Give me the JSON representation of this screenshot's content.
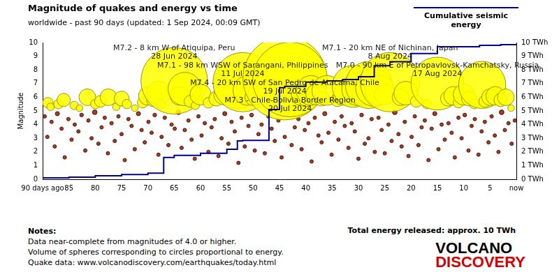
{
  "chart_data": {
    "type": "bubble",
    "title": "Magnitude of quakes and energy vs time",
    "subtitle": "worldwide - past 90 days (updated: 1 Sep 2024, 00:09 GMT)",
    "ylabel": "Magnitude",
    "xlim": [
      90,
      0
    ],
    "xticks": [
      {
        "value": 90,
        "label": "90 days ago"
      },
      85,
      80,
      75,
      70,
      65,
      60,
      55,
      50,
      45,
      40,
      35,
      30,
      25,
      20,
      15,
      10,
      5,
      {
        "value": 0,
        "label": "now"
      }
    ],
    "ylim": [
      0,
      10
    ],
    "yticks": [
      0,
      1,
      2,
      3,
      4,
      5,
      6,
      7,
      8,
      9,
      10
    ],
    "y2lim": [
      0,
      10
    ],
    "y2ticks": [
      {
        "value": 0,
        "label": "0 TWh"
      },
      {
        "value": 1,
        "label": "1 TWh"
      },
      {
        "value": 2,
        "label": "2 TWh"
      },
      {
        "value": 3,
        "label": "3 TWh"
      },
      {
        "value": 4,
        "label": "4 TWh"
      },
      {
        "value": 5,
        "label": "5 TWh"
      },
      {
        "value": 6,
        "label": "6 TWh"
      },
      {
        "value": 7,
        "label": "7 TWh"
      },
      {
        "value": 8,
        "label": "8 TWh"
      },
      {
        "value": 9,
        "label": "9 TWh"
      },
      {
        "value": 10,
        "label": "10 TWh"
      }
    ],
    "grid": false,
    "series": [
      {
        "name": "Cumulative seismic energy",
        "type": "line",
        "line_style": "step",
        "axis": "y2",
        "color": "#00008b",
        "x": [
          90,
          85,
          80,
          75,
          70,
          67,
          65,
          60,
          55,
          53,
          52,
          47,
          45,
          44,
          40,
          36,
          33,
          30,
          27,
          24,
          20,
          15,
          7,
          3,
          0
        ],
        "values": [
          0.02,
          0.1,
          0.15,
          0.25,
          0.35,
          0.45,
          1.6,
          1.75,
          1.9,
          2.2,
          2.8,
          2.85,
          5.1,
          6.7,
          6.8,
          7.1,
          7.2,
          7.3,
          7.5,
          8.3,
          8.6,
          9.2,
          9.7,
          9.8,
          9.85
        ]
      },
      {
        "type": "bubble",
        "color": "#ffff00",
        "x": [
          89,
          88.5,
          87,
          86,
          84,
          83,
          81.5,
          80,
          79,
          77.5,
          76,
          75,
          74,
          72.5,
          71,
          70,
          69,
          68,
          67.5,
          65,
          64,
          63,
          62,
          61,
          60,
          58.5,
          57,
          55.5,
          54,
          53,
          52,
          51,
          50,
          49,
          48,
          47,
          46,
          44,
          43,
          41,
          40,
          39,
          38,
          37,
          36,
          34,
          33,
          32,
          31,
          30,
          29,
          28,
          27,
          26,
          25,
          24,
          22,
          21,
          19,
          17,
          15,
          13,
          12,
          11,
          10,
          9,
          8,
          6.5,
          6,
          5,
          4,
          3,
          2,
          1
        ],
        "values": [
          5.6,
          5.3,
          5.5,
          5.8,
          5.4,
          5.2,
          6.0,
          5.5,
          5.7,
          6.0,
          5.3,
          5.9,
          5.5,
          5.2,
          5.6,
          6.1,
          5.8,
          6.3,
          5.5,
          7.2,
          6.1,
          6.6,
          5.7,
          5.4,
          6.2,
          5.6,
          5.9,
          6.2,
          6.6,
          6.9,
          7.1,
          6.5,
          6.0,
          6.2,
          5.8,
          6.0,
          6.4,
          7.4,
          7.3,
          6.1,
          5.8,
          6.5,
          6.2,
          5.9,
          6.5,
          5.8,
          6.1,
          6.4,
          6.8,
          6.6,
          6.3,
          6.9,
          6.7,
          6.5,
          6.2,
          7.1,
          6.0,
          6.3,
          5.7,
          5.5,
          7.0,
          5.9,
          6.1,
          5.6,
          6.2,
          5.9,
          5.5,
          6.9,
          5.7,
          6.0,
          6.1,
          5.8,
          6.0,
          5.2
        ]
      },
      {
        "type": "bubble",
        "color": "#8b1e00",
        "x": [
          89.6,
          89.1,
          88.3,
          87.7,
          87.2,
          86.4,
          85.8,
          85.1,
          84.5,
          83.9,
          83.2,
          82.6,
          81.9,
          81.3,
          80.7,
          80.1,
          79.4,
          78.8,
          78.2,
          77.6,
          76.9,
          76.3,
          75.6,
          75.0,
          74.4,
          73.7,
          73.1,
          72.5,
          71.8,
          71.2,
          70.6,
          69.9,
          69.3,
          68.7,
          68.0,
          67.4,
          66.8,
          66.1,
          65.5,
          64.9,
          64.2,
          63.6,
          63.0,
          62.3,
          61.7,
          61.1,
          60.4,
          59.8,
          59.2,
          58.5,
          57.9,
          57.3,
          56.6,
          56.0,
          55.4,
          54.7,
          54.1,
          53.5,
          52.8,
          52.2,
          51.6,
          50.9,
          50.3,
          49.7,
          49.0,
          48.4,
          47.8,
          47.1,
          46.5,
          45.9,
          45.2,
          44.6,
          44.0,
          43.3,
          42.7,
          42.1,
          41.4,
          40.8,
          40.2,
          39.5,
          38.9,
          38.3,
          37.6,
          37.0,
          36.4,
          35.7,
          35.1,
          34.5,
          33.8,
          33.2,
          32.6,
          31.9,
          31.3,
          30.7,
          30.0,
          29.4,
          28.8,
          28.1,
          27.5,
          26.9,
          26.2,
          25.6,
          25.0,
          24.3,
          23.7,
          23.1,
          22.4,
          21.8,
          21.2,
          20.5,
          19.9,
          19.3,
          18.6,
          18.0,
          17.4,
          16.7,
          16.1,
          15.5,
          14.8,
          14.2,
          13.6,
          12.9,
          12.3,
          11.7,
          11.0,
          10.4,
          9.8,
          9.1,
          8.5,
          7.9,
          7.2,
          6.6,
          6.0,
          5.3,
          4.7,
          4.1,
          3.4,
          2.8,
          2.2,
          1.5,
          0.9,
          0.3
        ],
        "values": [
          4.6,
          3.1,
          4.2,
          2.4,
          4.8,
          3.7,
          1.6,
          4.4,
          2.9,
          4.0,
          3.5,
          4.7,
          2.1,
          4.3,
          3.0,
          4.9,
          2.6,
          3.8,
          4.5,
          1.9,
          4.1,
          2.8,
          4.6,
          3.3,
          1.4,
          4.4,
          3.9,
          2.2,
          4.8,
          3.6,
          2.7,
          4.2,
          3.4,
          4.7,
          1.8,
          3.1,
          4.5,
          2.5,
          4.0,
          3.7,
          4.9,
          2.3,
          3.6,
          4.3,
          2.9,
          1.5,
          4.6,
          3.2,
          4.1,
          2.0,
          3.8,
          4.4,
          1.7,
          3.0,
          4.8,
          2.6,
          4.2,
          3.5,
          1.2,
          4.5,
          2.4,
          3.9,
          4.7,
          2.1,
          3.3,
          4.0,
          1.9,
          4.6,
          3.7,
          2.8,
          4.3,
          1.6,
          3.1,
          4.9,
          2.5,
          3.8,
          4.4,
          2.2,
          3.6,
          4.1,
          1.3,
          4.5,
          3.2,
          2.7,
          4.8,
          3.4,
          1.8,
          4.2,
          2.9,
          4.6,
          3.9,
          2.3,
          4.1,
          3.5,
          1.5,
          4.7,
          2.6,
          3.0,
          4.4,
          2.0,
          4.5,
          3.6,
          1.9,
          4.0,
          2.8,
          4.9,
          3.3,
          2.4,
          4.2,
          1.7,
          3.1,
          4.6,
          2.5,
          3.8,
          4.3,
          1.4,
          3.7,
          4.8,
          2.2,
          4.0,
          2.9,
          4.1,
          3.4,
          1.6,
          4.5,
          3.0,
          4.7,
          2.1,
          3.9,
          4.4,
          1.8,
          3.5,
          4.2,
          2.7,
          4.6,
          3.2,
          2.0,
          4.9,
          3.6,
          4.1,
          2.6,
          4.3
        ]
      }
    ],
    "annotations": [
      {
        "x": 65,
        "y": 7.2,
        "text": "M7.2 - 8 km W of Atiquipa, Peru",
        "date": "28 Jun 2024"
      },
      {
        "x": 52,
        "y": 7.1,
        "text": "M7.1 - 98 km WSW of Sarangani, Philippines",
        "date": "11 Jul 2024"
      },
      {
        "x": 44,
        "y": 7.4,
        "text": "M7.4 - 20 km SW of San Pedro de Atacama, Chile",
        "date": "19 Jul 2024"
      },
      {
        "x": 43,
        "y": 7.3,
        "text": "M7.3 - Chile-Bolivia Border Region",
        "date": "20 Jul 2024"
      },
      {
        "x": 24,
        "y": 7.1,
        "text": "M7.1 - 20 km NE of Nichinan, Japan",
        "date": "8 Aug 2024"
      },
      {
        "x": 15,
        "y": 7.0,
        "text": "M7.0 - 90 km E of Petropavlovsk-Kamchatsky, Russia",
        "date": "17 Aug 2024"
      }
    ]
  },
  "notes": {
    "heading": "Notes:",
    "lines": [
      "Data near-complete from magnitudes of 4.0 or higher.",
      "Volume of spheres corresponding to circles proportional to energy.",
      "Quake data: www.volcanodiscovery.com/earthquakes/today.html"
    ]
  },
  "total_energy": "Total energy released: approx. 10 TWh",
  "logo": [
    "VOLCANO",
    "DISCOVERY"
  ]
}
